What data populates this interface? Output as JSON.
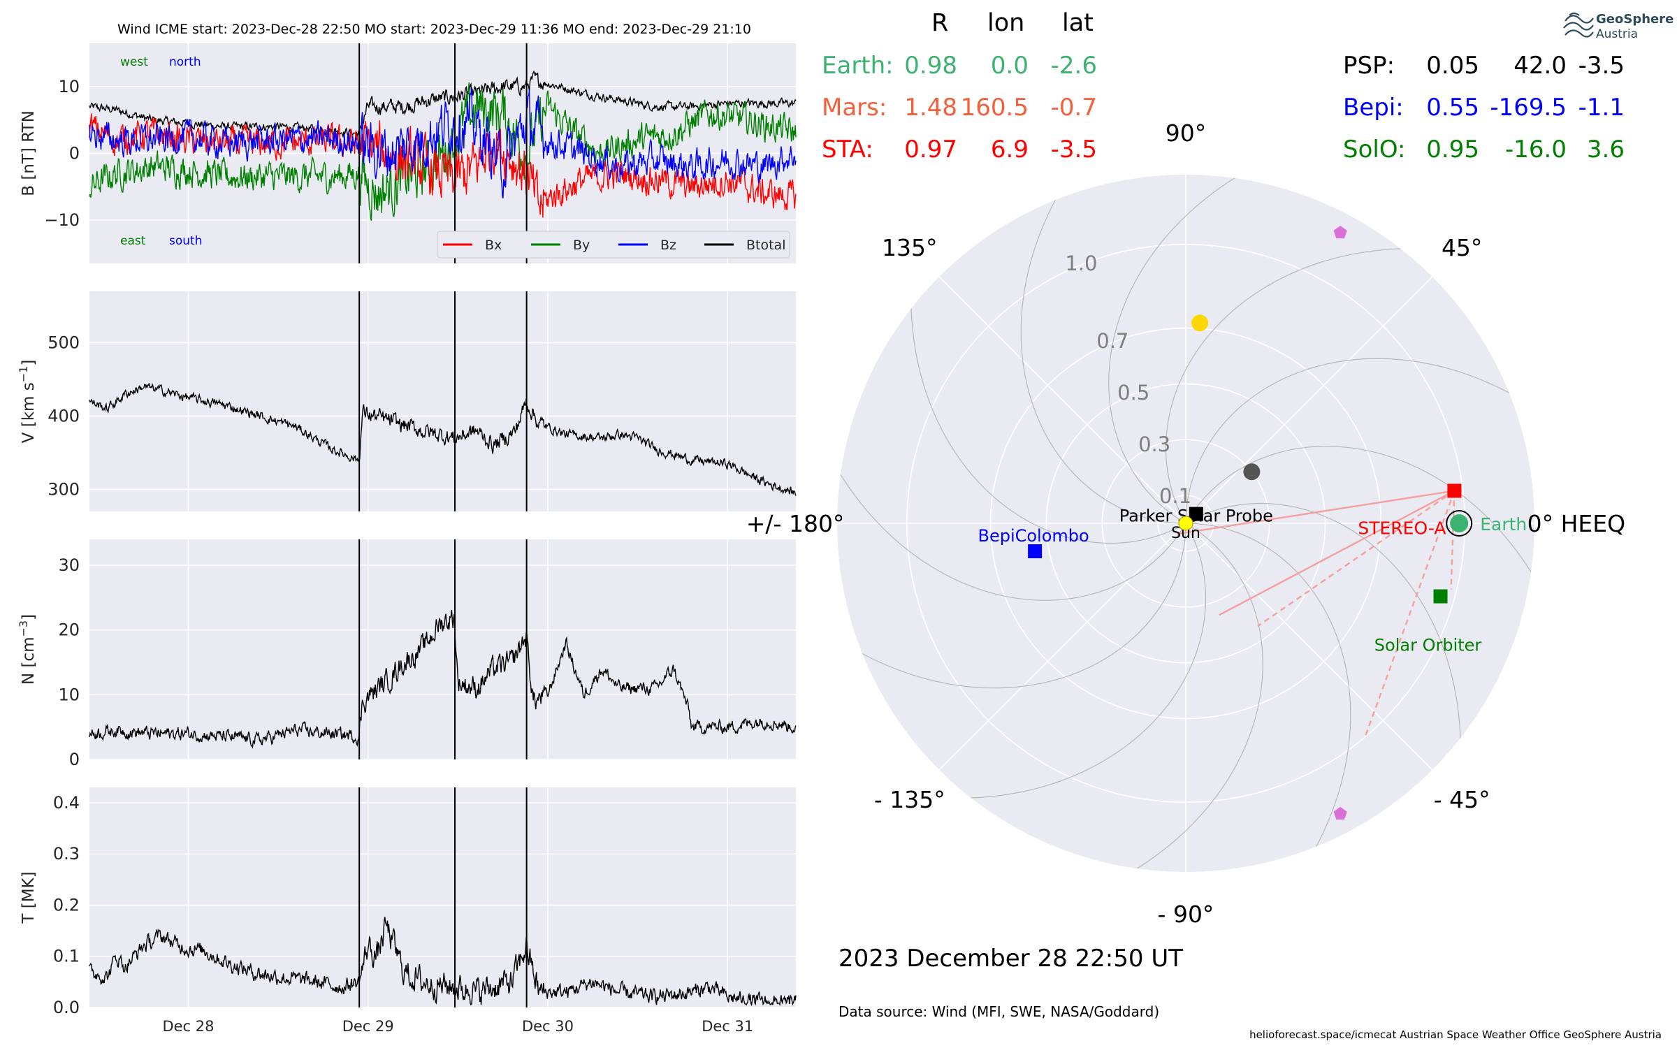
{
  "header": {
    "title": "Wind    ICME start: 2023-Dec-28 22:50   MO start: 2023-Dec-29 11:36   MO end: 2023-Dec-29 21:10"
  },
  "logo": {
    "line1": "GeoSphere",
    "line2": "Austria"
  },
  "footer": {
    "date": "2023 December 28  22:50 UT",
    "source": "Data source: Wind (MFI, SWE, NASA/Goddard)",
    "credits": "helioforecast.space/icmecat   Austrian Space Weather Office   GeoSphere Austria"
  },
  "colors": {
    "bx": "#ff0000",
    "by": "#008000",
    "bz": "#0000ff",
    "bt": "#000000",
    "earth": "#3cb371",
    "mars": "#f4603c",
    "sta": "#ff0000",
    "psp": "#000000",
    "bepi": "#0000ff",
    "solo": "#008000",
    "panel_bg": "#eaeaf2"
  },
  "time_axis": {
    "ticks": [
      "Dec 28",
      "Dec 29",
      "Dec 30",
      "Dec 31"
    ],
    "tick_days": [
      28,
      29,
      30,
      31
    ],
    "range_days": [
      27.45,
      31.38
    ],
    "event_lines_days": [
      28.951,
      29.483,
      29.882
    ]
  },
  "chart_data": [
    {
      "type": "line",
      "id": "b",
      "ylabel": "B [nT] RTN",
      "ylim": [
        -16.5,
        16.5
      ],
      "yticks": [
        -10,
        0,
        10
      ],
      "annotations": {
        "west": "west",
        "north": "north",
        "east": "east",
        "south": "south"
      },
      "legend": [
        "Bx",
        "By",
        "Bz",
        "Btotal"
      ],
      "legend_position": "lower-right",
      "series": [
        {
          "name": "Bx",
          "keypoints": [
            [
              27.45,
              4
            ],
            [
              27.6,
              2
            ],
            [
              27.8,
              3
            ],
            [
              28.0,
              2
            ],
            [
              28.2,
              1.5
            ],
            [
              28.5,
              1.5
            ],
            [
              28.8,
              1.8
            ],
            [
              28.95,
              1.5
            ],
            [
              29.1,
              0
            ],
            [
              29.3,
              -2
            ],
            [
              29.48,
              -4
            ],
            [
              29.6,
              -2
            ],
            [
              29.7,
              2
            ],
            [
              29.88,
              -3
            ],
            [
              29.95,
              -8
            ],
            [
              30.05,
              -6
            ],
            [
              30.2,
              -4
            ],
            [
              30.4,
              -3
            ],
            [
              30.6,
              -4
            ],
            [
              30.8,
              -5
            ],
            [
              31.0,
              -4
            ],
            [
              31.2,
              -6
            ],
            [
              31.38,
              -6.5
            ]
          ]
        },
        {
          "name": "By",
          "keypoints": [
            [
              27.45,
              -5
            ],
            [
              27.6,
              -3
            ],
            [
              27.8,
              -2
            ],
            [
              28.0,
              -2.5
            ],
            [
              28.2,
              -3.5
            ],
            [
              28.5,
              -3.5
            ],
            [
              28.8,
              -3.5
            ],
            [
              28.95,
              -3
            ],
            [
              29.05,
              -6
            ],
            [
              29.2,
              -4
            ],
            [
              29.35,
              -2
            ],
            [
              29.48,
              2
            ],
            [
              29.6,
              7
            ],
            [
              29.75,
              6
            ],
            [
              29.88,
              0
            ],
            [
              30.0,
              7
            ],
            [
              30.15,
              3
            ],
            [
              30.3,
              0
            ],
            [
              30.5,
              2
            ],
            [
              30.7,
              3
            ],
            [
              30.9,
              6
            ],
            [
              31.1,
              5
            ],
            [
              31.25,
              4
            ],
            [
              31.38,
              3
            ]
          ]
        },
        {
          "name": "Bz",
          "keypoints": [
            [
              27.45,
              3
            ],
            [
              27.6,
              2
            ],
            [
              27.8,
              2
            ],
            [
              28.0,
              2.5
            ],
            [
              28.2,
              1.5
            ],
            [
              28.5,
              2
            ],
            [
              28.8,
              2.2
            ],
            [
              28.95,
              1.5
            ],
            [
              29.1,
              0
            ],
            [
              29.3,
              2
            ],
            [
              29.48,
              5
            ],
            [
              29.6,
              4
            ],
            [
              29.75,
              -2
            ],
            [
              29.88,
              5
            ],
            [
              30.0,
              2
            ],
            [
              30.2,
              0
            ],
            [
              30.4,
              -2
            ],
            [
              30.6,
              -1
            ],
            [
              30.8,
              -2
            ],
            [
              31.0,
              -1
            ],
            [
              31.2,
              -2
            ],
            [
              31.38,
              0
            ]
          ]
        },
        {
          "name": "Btotal",
          "keypoints": [
            [
              27.45,
              7
            ],
            [
              27.6,
              6.5
            ],
            [
              27.8,
              5
            ],
            [
              28.0,
              4.5
            ],
            [
              28.2,
              4
            ],
            [
              28.5,
              4
            ],
            [
              28.8,
              3.5
            ],
            [
              28.95,
              3
            ],
            [
              29.0,
              7
            ],
            [
              29.2,
              7
            ],
            [
              29.35,
              8
            ],
            [
              29.48,
              8.5
            ],
            [
              29.6,
              9
            ],
            [
              29.75,
              10
            ],
            [
              29.88,
              10
            ],
            [
              29.92,
              11
            ],
            [
              30.0,
              10.5
            ],
            [
              30.2,
              9
            ],
            [
              30.4,
              8
            ],
            [
              30.6,
              7
            ],
            [
              30.8,
              7
            ],
            [
              31.0,
              7.5
            ],
            [
              31.2,
              7.5
            ],
            [
              31.38,
              7.5
            ]
          ]
        }
      ]
    },
    {
      "type": "line",
      "id": "v",
      "ylabel": "V [km s$^{-1}$]",
      "ylim": [
        270,
        570
      ],
      "yticks": [
        300,
        400,
        500
      ],
      "series": [
        {
          "name": "V",
          "keypoints": [
            [
              27.45,
              420
            ],
            [
              27.55,
              410
            ],
            [
              27.65,
              430
            ],
            [
              27.75,
              440
            ],
            [
              27.85,
              435
            ],
            [
              28.0,
              425
            ],
            [
              28.2,
              415
            ],
            [
              28.4,
              400
            ],
            [
              28.6,
              385
            ],
            [
              28.8,
              355
            ],
            [
              28.95,
              340
            ],
            [
              28.97,
              405
            ],
            [
              29.1,
              395
            ],
            [
              29.3,
              380
            ],
            [
              29.48,
              370
            ],
            [
              29.6,
              380
            ],
            [
              29.7,
              360
            ],
            [
              29.82,
              380
            ],
            [
              29.88,
              420
            ],
            [
              29.95,
              390
            ],
            [
              30.1,
              375
            ],
            [
              30.3,
              370
            ],
            [
              30.4,
              375
            ],
            [
              30.5,
              370
            ],
            [
              30.6,
              355
            ],
            [
              30.8,
              340
            ],
            [
              31.0,
              335
            ],
            [
              31.2,
              310
            ],
            [
              31.38,
              295
            ]
          ]
        }
      ]
    },
    {
      "type": "line",
      "id": "n",
      "ylabel": "N [cm$^{-3}$]",
      "ylim": [
        0,
        34
      ],
      "yticks": [
        0,
        10,
        20,
        30
      ],
      "series": [
        {
          "name": "N",
          "keypoints": [
            [
              27.45,
              4
            ],
            [
              27.6,
              4.5
            ],
            [
              27.8,
              4
            ],
            [
              28.0,
              4
            ],
            [
              28.2,
              3.5
            ],
            [
              28.4,
              3
            ],
            [
              28.6,
              4.5
            ],
            [
              28.8,
              4
            ],
            [
              28.95,
              3.5
            ],
            [
              28.97,
              9
            ],
            [
              29.1,
              12
            ],
            [
              29.2,
              15
            ],
            [
              29.3,
              17
            ],
            [
              29.4,
              21
            ],
            [
              29.48,
              22
            ],
            [
              29.5,
              12
            ],
            [
              29.6,
              11
            ],
            [
              29.7,
              14
            ],
            [
              29.8,
              15
            ],
            [
              29.88,
              19
            ],
            [
              29.92,
              9
            ],
            [
              30.0,
              10
            ],
            [
              30.1,
              18
            ],
            [
              30.2,
              10
            ],
            [
              30.3,
              14
            ],
            [
              30.4,
              11
            ],
            [
              30.5,
              11
            ],
            [
              30.6,
              11
            ],
            [
              30.7,
              14
            ],
            [
              30.78,
              8
            ],
            [
              30.8,
              5
            ],
            [
              31.0,
              5
            ],
            [
              31.2,
              6
            ],
            [
              31.38,
              5
            ]
          ]
        }
      ]
    },
    {
      "type": "line",
      "id": "t",
      "ylabel": "T [MK]",
      "ylim": [
        0,
        0.43
      ],
      "yticks": [
        0.0,
        0.1,
        0.2,
        0.3,
        0.4
      ],
      "series": [
        {
          "name": "T",
          "keypoints": [
            [
              27.45,
              0.07
            ],
            [
              27.55,
              0.06
            ],
            [
              27.6,
              0.1
            ],
            [
              27.65,
              0.08
            ],
            [
              27.75,
              0.12
            ],
            [
              27.85,
              0.14
            ],
            [
              27.95,
              0.12
            ],
            [
              28.1,
              0.11
            ],
            [
              28.2,
              0.09
            ],
            [
              28.35,
              0.07
            ],
            [
              28.5,
              0.06
            ],
            [
              28.7,
              0.05
            ],
            [
              28.85,
              0.04
            ],
            [
              28.95,
              0.05
            ],
            [
              29.0,
              0.12
            ],
            [
              29.05,
              0.1
            ],
            [
              29.1,
              0.16
            ],
            [
              29.2,
              0.07
            ],
            [
              29.3,
              0.05
            ],
            [
              29.48,
              0.04
            ],
            [
              29.6,
              0.03
            ],
            [
              29.8,
              0.05
            ],
            [
              29.88,
              0.12
            ],
            [
              29.95,
              0.03
            ],
            [
              30.1,
              0.03
            ],
            [
              30.25,
              0.05
            ],
            [
              30.4,
              0.03
            ],
            [
              30.6,
              0.02
            ],
            [
              30.8,
              0.03
            ],
            [
              30.9,
              0.04
            ],
            [
              31.0,
              0.02
            ],
            [
              31.2,
              0.01
            ],
            [
              31.38,
              0.01
            ]
          ]
        }
      ]
    },
    {
      "type": "polar",
      "id": "positions",
      "coordinate_system": "HEEQ",
      "theta_labels": [
        "0° HEEQ",
        "45°",
        "90°",
        "135°",
        "+/- 180°",
        "- 135°",
        "- 90°",
        "- 45°"
      ],
      "theta_label_angles": [
        0,
        45,
        90,
        135,
        180,
        -135,
        -90,
        -45
      ],
      "r_ticks": [
        0.1,
        0.3,
        0.5,
        0.7,
        1.0
      ],
      "r_max": 1.25,
      "table": {
        "columns": [
          "R",
          "lon",
          "lat"
        ],
        "rows": [
          {
            "name": "Earth:",
            "R": "0.98",
            "lon": "0.0",
            "lat": "-2.6",
            "color": "#3cb371"
          },
          {
            "name": "Mars:",
            "R": "1.48",
            "lon": "160.5",
            "lat": "-0.7",
            "color": "#f4603c"
          },
          {
            "name": "STA:",
            "R": "0.97",
            "lon": "6.9",
            "lat": "-3.5",
            "color": "#ff0000"
          },
          {
            "name": "PSP:",
            "R": "0.05",
            "lon": "42.0",
            "lat": "-3.5",
            "color": "#000000"
          },
          {
            "name": "Bepi:",
            "R": "0.55",
            "lon": "-169.5",
            "lat": "-1.1",
            "color": "#0000ff"
          },
          {
            "name": "SolO:",
            "R": "0.95",
            "lon": "-16.0",
            "lat": "3.6",
            "color": "#008000"
          }
        ]
      },
      "bodies": [
        {
          "label": "Earth",
          "r": 0.98,
          "lon": 0.0,
          "marker": "circle",
          "color": "#3cb371"
        },
        {
          "label": "STEREO-A",
          "r": 0.97,
          "lon": 6.9,
          "marker": "square",
          "color": "#ff0000"
        },
        {
          "label": "BepiColombo",
          "r": 0.55,
          "lon": -169.5,
          "marker": "square",
          "color": "#0000ff"
        },
        {
          "label": "Solar Orbiter",
          "r": 0.95,
          "lon": -16.0,
          "marker": "square",
          "color": "#008000"
        },
        {
          "label": "Parker Solar Probe",
          "r": 0.05,
          "lon": 42.0,
          "marker": "square",
          "color": "#000000"
        },
        {
          "label": "Sun",
          "r": 0.0,
          "lon": 0.0,
          "marker": "circle",
          "color": "#ffff00"
        }
      ],
      "other_planets": [
        {
          "r": 0.72,
          "lon": 86,
          "marker": "circle",
          "color": "#ffd700"
        },
        {
          "r": 0.3,
          "lon": 38,
          "marker": "circle",
          "color": "#555555"
        },
        {
          "r": 1.18,
          "lon": 62,
          "marker": "pentagon",
          "color": "#da70d6"
        },
        {
          "r": 1.18,
          "lon": -62,
          "marker": "pentagon",
          "color": "#da70d6"
        }
      ]
    }
  ]
}
